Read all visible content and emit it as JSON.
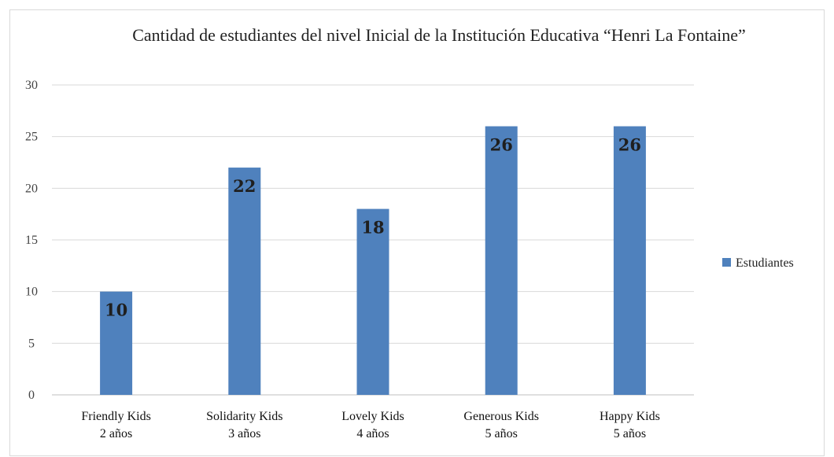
{
  "chart_data": {
    "type": "bar",
    "title": "Cantidad de estudiantes del nivel Inicial de la Institución Educativa “Henri La Fontaine”",
    "categories": [
      {
        "name": "Friendly Kids",
        "sub": "2 años"
      },
      {
        "name": "Solidarity Kids",
        "sub": "3 años"
      },
      {
        "name": "Lovely Kids",
        "sub": "4 años"
      },
      {
        "name": "Generous Kids",
        "sub": "5 años"
      },
      {
        "name": "Happy Kids",
        "sub": "5 años"
      }
    ],
    "series": [
      {
        "name": "Estudiantes",
        "values": [
          10,
          22,
          18,
          26,
          26
        ],
        "color": "#4f81bd"
      }
    ],
    "ylim": [
      0,
      30
    ],
    "yticks": [
      "0",
      "5",
      "10",
      "15",
      "20",
      "25",
      "30"
    ],
    "grid": true,
    "legend_position": "right"
  }
}
